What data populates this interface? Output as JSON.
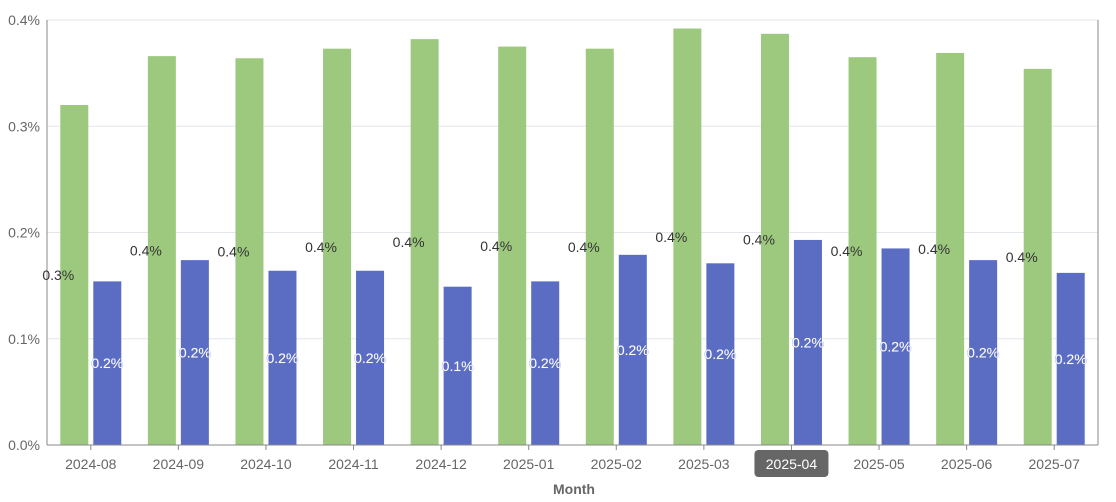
{
  "chart_data": {
    "type": "bar",
    "title": "",
    "xlabel": "Month",
    "ylabel": "",
    "ylim": [
      0,
      0.4
    ],
    "y_ticks": [
      "0.0%",
      "0.1%",
      "0.2%",
      "0.3%",
      "0.4%"
    ],
    "categories": [
      "2024-08",
      "2024-09",
      "2024-10",
      "2024-11",
      "2024-12",
      "2025-01",
      "2025-02",
      "2025-03",
      "2025-04",
      "2025-05",
      "2025-06",
      "2025-07"
    ],
    "highlighted_category": "2025-04",
    "series": [
      {
        "color": "#9dc97f",
        "values": [
          0.32,
          0.366,
          0.364,
          0.373,
          0.382,
          0.375,
          0.373,
          0.392,
          0.387,
          0.365,
          0.369,
          0.354
        ],
        "labels": [
          "0.3%",
          "0.4%",
          "0.4%",
          "0.4%",
          "0.4%",
          "0.4%",
          "0.4%",
          "0.4%",
          "0.4%",
          "0.4%",
          "0.4%",
          "0.4%"
        ]
      },
      {
        "color": "#5b6dc2",
        "values": [
          0.154,
          0.174,
          0.164,
          0.164,
          0.149,
          0.154,
          0.179,
          0.171,
          0.193,
          0.185,
          0.174,
          0.162
        ],
        "labels": [
          "0.2%",
          "0.2%",
          "0.2%",
          "0.2%",
          "0.1%",
          "0.2%",
          "0.2%",
          "0.2%",
          "0.2%",
          "0.2%",
          "0.2%",
          "0.2%"
        ]
      }
    ],
    "grid": true,
    "legend": "none"
  }
}
